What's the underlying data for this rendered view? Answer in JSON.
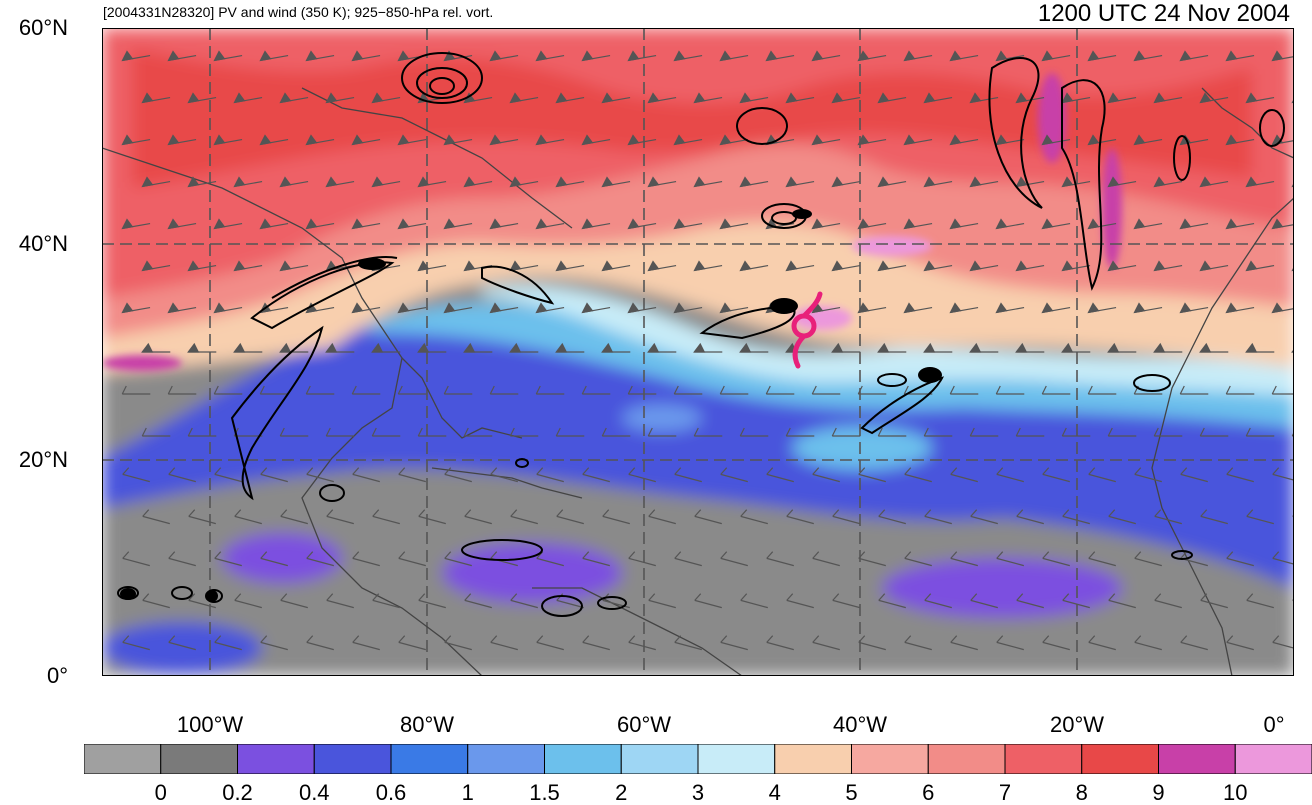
{
  "header": {
    "left_title": "[2004331N28320] PV and wind (350 K); 925−850-hPa rel. vort.",
    "right_title": "1200 UTC 24 Nov 2004"
  },
  "axes": {
    "lat_labels": [
      "60°N",
      "40°N",
      "20°N",
      "0°"
    ],
    "lon_labels": [
      "100°W",
      "80°W",
      "60°W",
      "40°W",
      "20°W",
      "0°"
    ]
  },
  "colorbar": {
    "labels": [
      "0",
      "0.2",
      "0.4",
      "0.6",
      "1",
      "1.5",
      "2",
      "3",
      "4",
      "5",
      "6",
      "7",
      "8",
      "9",
      "10"
    ],
    "colors": [
      "#a0a0a0",
      "#7a7a7a",
      "#7b50e0",
      "#4a55dc",
      "#3a7ae6",
      "#6a98ec",
      "#6cc0ec",
      "#9ed6f4",
      "#c8ecf8",
      "#f8cfae",
      "#f6a8a0",
      "#f28c88",
      "#ee6066",
      "#e84848",
      "#c840a8",
      "#ec98dc"
    ]
  },
  "storm_symbol": {
    "color": "#e8207a"
  }
}
